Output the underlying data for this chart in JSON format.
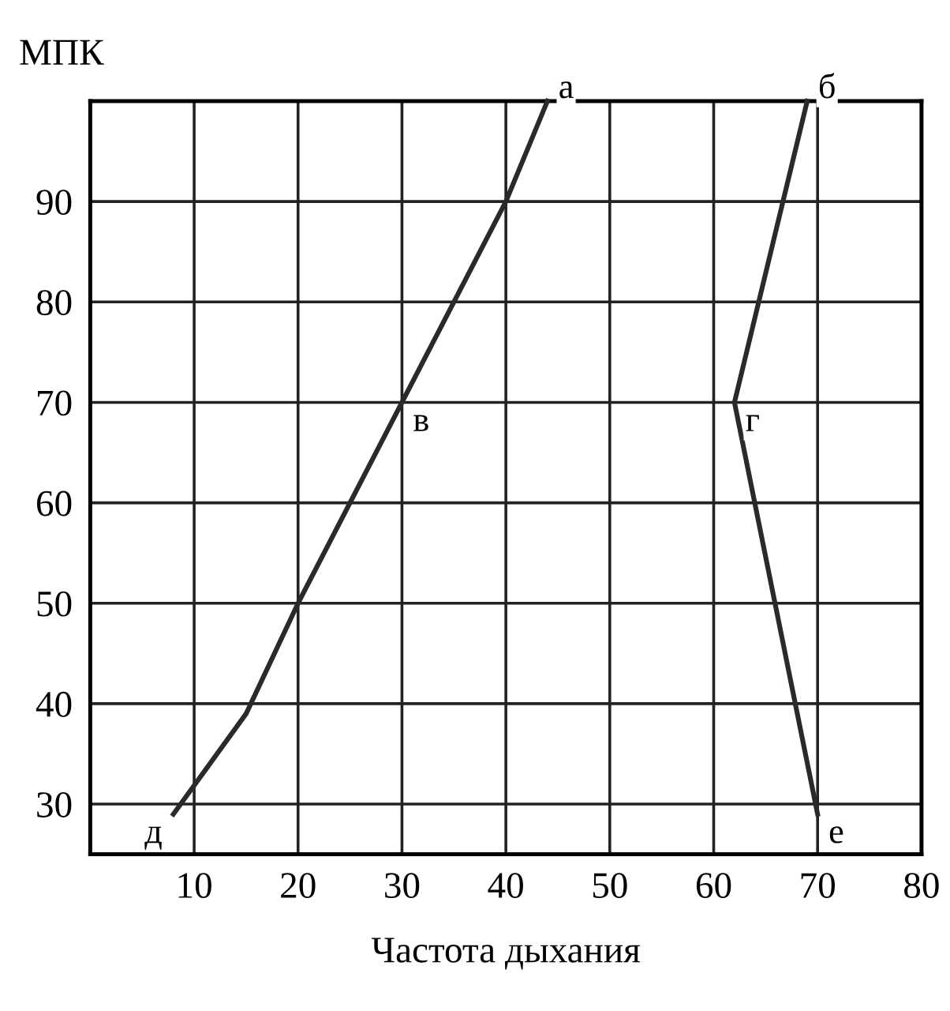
{
  "chart_data": {
    "type": "line",
    "ylabel": "МПК",
    "xlabel": "Частота дыхания",
    "series": [
      {
        "color": "#2a2a2a",
        "x": [
          8,
          15,
          20,
          30,
          40,
          44
        ],
        "values": [
          29,
          39,
          50,
          70,
          90,
          100
        ]
      },
      {
        "color": "#2a2a2a",
        "x": [
          69,
          62,
          70
        ],
        "values": [
          100,
          70,
          29
        ]
      }
    ],
    "annotations": [
      {
        "text": "а",
        "x": 44,
        "y": 100
      },
      {
        "text": "б",
        "x": 69,
        "y": 100
      },
      {
        "text": "в",
        "x": 30,
        "y": 70
      },
      {
        "text": "г",
        "x": 62,
        "y": 70
      },
      {
        "text": "д",
        "x": 8,
        "y": 29
      },
      {
        "text": "е",
        "x": 70,
        "y": 29
      }
    ],
    "xlim": [
      0,
      80
    ],
    "ylim": [
      25,
      100
    ],
    "xticks": [
      10,
      20,
      30,
      40,
      50,
      60,
      70,
      80
    ],
    "yticks": [
      30,
      40,
      50,
      60,
      70,
      80,
      90
    ],
    "grid": true,
    "marker": "none",
    "line_style": "solid"
  }
}
